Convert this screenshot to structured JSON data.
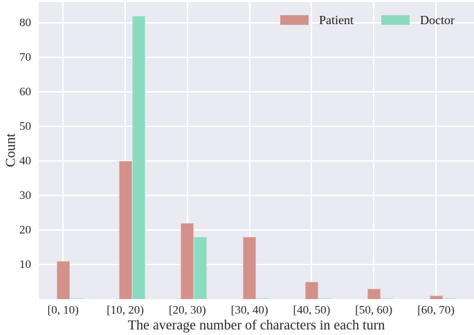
{
  "chart_data": {
    "type": "bar",
    "title": "",
    "categories": [
      "[0, 10)",
      "[10, 20)",
      "[20, 30)",
      "[30, 40)",
      "[40, 50)",
      "[50, 60)",
      "[60, 70)"
    ],
    "series": [
      {
        "name": "Patient",
        "color": "#d4908a",
        "values": [
          11,
          40,
          22,
          18,
          5,
          3,
          1
        ]
      },
      {
        "name": "Doctor",
        "color": "#8cdbc0",
        "values": [
          0,
          82,
          18,
          0,
          0,
          0,
          0
        ]
      }
    ],
    "xlabel": "The average number of characters in each turn",
    "ylabel": "Count",
    "ylim": [
      0,
      86
    ],
    "yticks": [
      10,
      20,
      30,
      40,
      50,
      60,
      70,
      80
    ],
    "grid": true,
    "legend_position": "upper right inside",
    "colors": {
      "plot_background": "#eaeaf2",
      "gridline": "#ffffff",
      "tick_text": "#262626",
      "legend_text": "#1a1a1a"
    }
  }
}
